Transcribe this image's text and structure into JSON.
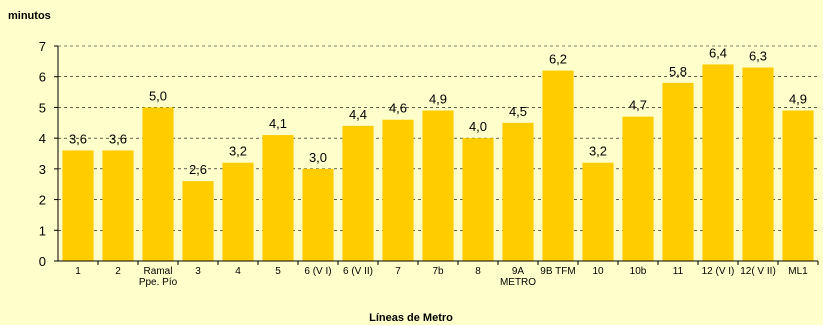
{
  "chart_data": {
    "type": "bar",
    "title": "",
    "ylabel": "minutos",
    "xlabel": "Líneas de Metro",
    "ylim": [
      0,
      7
    ],
    "yticks": [
      "0",
      "1",
      "2",
      "3",
      "4",
      "5",
      "6",
      "7"
    ],
    "grid": "horizontal dashed",
    "bar_color": "#ffcc00",
    "categories": [
      [
        "1"
      ],
      [
        "2"
      ],
      [
        "Ramal",
        "Ppe. Pío"
      ],
      [
        "3"
      ],
      [
        "4"
      ],
      [
        "5"
      ],
      [
        "6 (V I)"
      ],
      [
        "6 (V II)"
      ],
      [
        "7"
      ],
      [
        "7b"
      ],
      [
        "8"
      ],
      [
        "9A",
        "METRO"
      ],
      [
        "9B TFM"
      ],
      [
        "10"
      ],
      [
        "10b"
      ],
      [
        "11"
      ],
      [
        "12 (V I)"
      ],
      [
        "12( V II)"
      ],
      [
        "ML1"
      ]
    ],
    "values": [
      3.6,
      3.6,
      5.0,
      2.6,
      3.2,
      4.1,
      3.0,
      4.4,
      4.6,
      4.9,
      4.0,
      4.5,
      6.2,
      3.2,
      4.7,
      5.8,
      6.4,
      6.3,
      4.9
    ],
    "value_labels": [
      "3,6",
      "3,6",
      "5,0",
      "2,6",
      "3,2",
      "4,1",
      "3,0",
      "4,4",
      "4,6",
      "4,9",
      "4,0",
      "4,5",
      "6,2",
      "3,2",
      "4,7",
      "5,8",
      "6,4",
      "6,3",
      "4,9"
    ]
  }
}
